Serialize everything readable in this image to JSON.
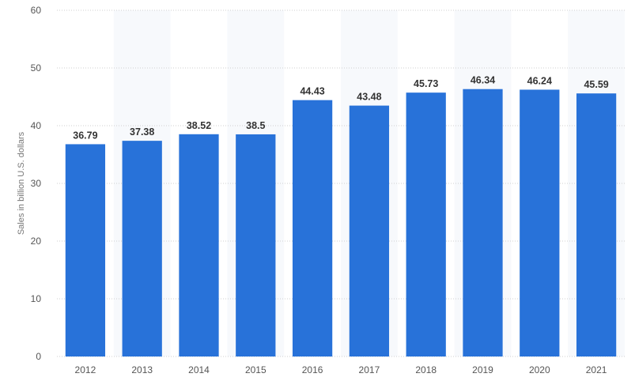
{
  "chart_data": {
    "type": "bar",
    "categories": [
      "2012",
      "2013",
      "2014",
      "2015",
      "2016",
      "2017",
      "2018",
      "2019",
      "2020",
      "2021"
    ],
    "values": [
      36.79,
      37.38,
      38.52,
      38.5,
      44.43,
      43.48,
      45.73,
      46.34,
      46.24,
      45.59
    ],
    "value_labels": [
      "36.79",
      "37.38",
      "38.52",
      "38.5",
      "44.43",
      "43.48",
      "45.73",
      "46.34",
      "46.24",
      "45.59"
    ],
    "title": "",
    "xlabel": "",
    "ylabel": "Sales in billion U.S. dollars",
    "ylim": [
      0,
      60
    ],
    "yticks": [
      "0",
      "10",
      "20",
      "30",
      "40",
      "50",
      "60"
    ],
    "bar_color": "#2872d9",
    "grid": true,
    "legend": "none"
  }
}
